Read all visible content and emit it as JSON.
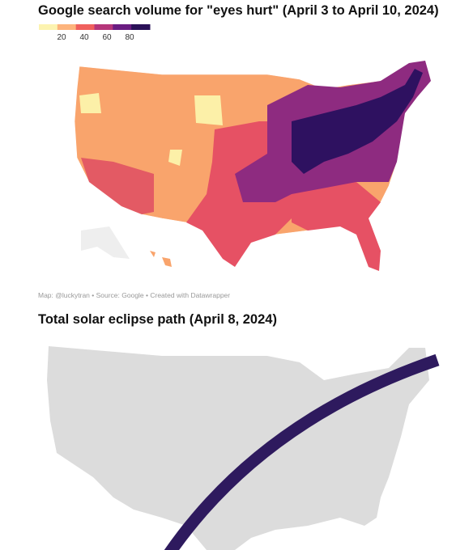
{
  "top_map": {
    "title": "Google search volume for \"eyes hurt\" (April 3 to April 10, 2024)",
    "legend": {
      "ticks": [
        20,
        40,
        60,
        80
      ],
      "colors": [
        "#fcf3b0",
        "#fdb47c",
        "#f0605d",
        "#b5367a",
        "#6a1c81",
        "#2a1158"
      ]
    },
    "credit": "Map: @luckytran • Source: Google • Created with Datawrapper"
  },
  "bottom_map": {
    "title": "Total solar eclipse path (April 8, 2024)"
  }
}
